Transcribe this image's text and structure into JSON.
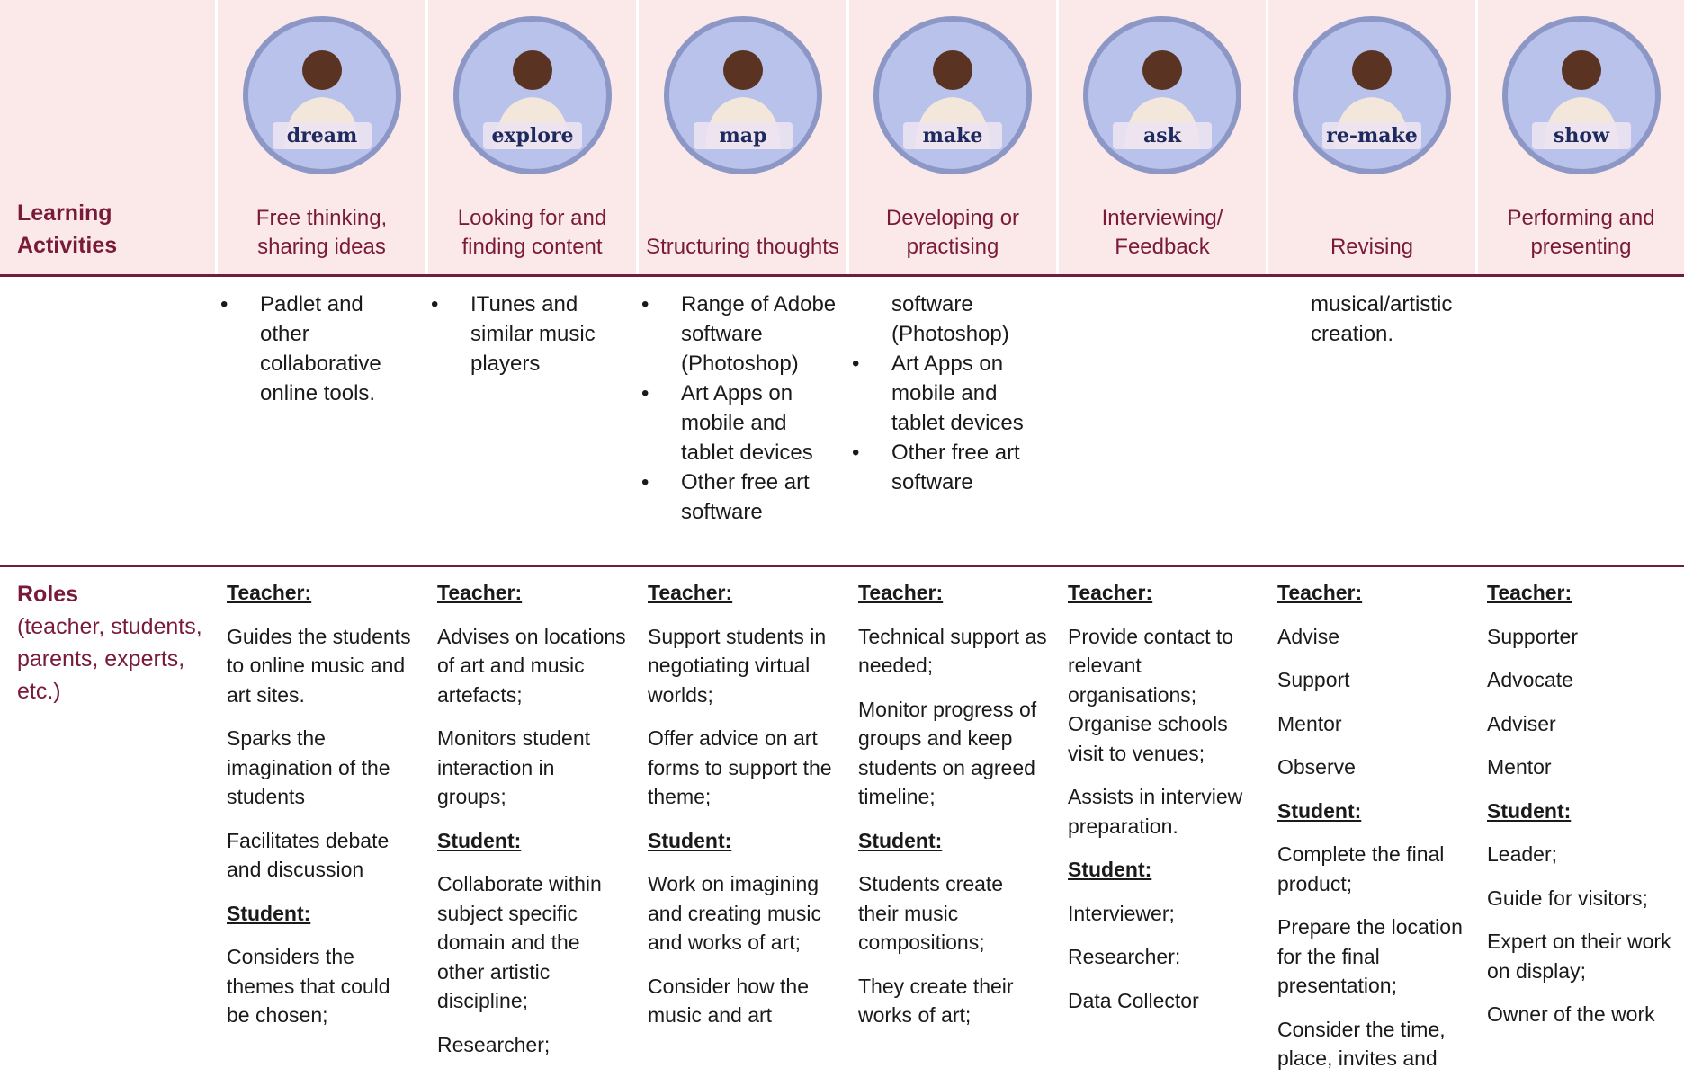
{
  "header": {
    "row_label": "Learning Activities",
    "columns": [
      {
        "icon": "dream",
        "activity": "Free thinking, sharing ideas"
      },
      {
        "icon": "explore",
        "activity": "Looking for and finding content"
      },
      {
        "icon": "map",
        "activity": "Structuring thoughts"
      },
      {
        "icon": "make",
        "activity": "Developing or practising"
      },
      {
        "icon": "ask",
        "activity": "Interviewing/ Feedback"
      },
      {
        "icon": "re-make",
        "activity": "Revising"
      },
      {
        "icon": "show",
        "activity": "Performing and presenting"
      }
    ]
  },
  "tools": [
    [
      {
        "text": "Padlet and other collaborative online tools.",
        "bullet": true
      }
    ],
    [
      {
        "text": "ITunes and similar music players",
        "bullet": true
      }
    ],
    [
      {
        "text": "Range of Adobe software (Photoshop)",
        "bullet": true
      },
      {
        "text": "Art Apps on mobile and tablet devices",
        "bullet": true
      },
      {
        "text": "Other free art software",
        "bullet": true
      }
    ],
    [
      {
        "text": "software (Photoshop)",
        "bullet": false
      },
      {
        "text": "Art Apps on mobile and tablet devices",
        "bullet": true
      },
      {
        "text": "Other free art software",
        "bullet": true
      }
    ],
    [],
    [
      {
        "text": "musical/artistic creation.",
        "bullet": false
      }
    ],
    []
  ],
  "roles": {
    "label": "Roles",
    "sublabel": "(teacher, students, parents, experts, etc.)",
    "cells": [
      [
        {
          "heading": "Teacher:"
        },
        {
          "text": "Guides the students to online music and art sites."
        },
        {
          "text": "Sparks the imagination of the students"
        },
        {
          "text": "Facilitates debate and discussion"
        },
        {
          "heading": "Student:"
        },
        {
          "text": "Considers the themes that could be chosen;"
        }
      ],
      [
        {
          "heading": "Teacher:"
        },
        {
          "text": "Advises on locations of art and music artefacts;"
        },
        {
          "text": "Monitors student interaction in groups;"
        },
        {
          "heading": "Student:"
        },
        {
          "text": "Collaborate within subject specific domain and the other artistic discipline;"
        },
        {
          "text": "Researcher;"
        }
      ],
      [
        {
          "heading": "Teacher:"
        },
        {
          "text": "Support students in negotiating virtual worlds;"
        },
        {
          "text": "Offer advice on art forms to support the theme;"
        },
        {
          "heading": "Student:"
        },
        {
          "text": "Work on imagining and creating music and works of art;"
        },
        {
          "text": "Consider how the music and art"
        }
      ],
      [
        {
          "heading": "Teacher:"
        },
        {
          "text": "Technical support as needed;"
        },
        {
          "text": "Monitor progress of groups and keep students on agreed timeline;"
        },
        {
          "heading": "Student:"
        },
        {
          "text": "Students create their music compositions;"
        },
        {
          "text": "They create their works of art;"
        }
      ],
      [
        {
          "heading": "Teacher:"
        },
        {
          "text": "Provide contact to relevant organisations;\nOrganise schools visit to venues;"
        },
        {
          "text": "Assists in interview preparation."
        },
        {
          "heading": "Student:"
        },
        {
          "text": "Interviewer;"
        },
        {
          "text": "Researcher:"
        },
        {
          "text": "Data Collector"
        }
      ],
      [
        {
          "heading": "Teacher:"
        },
        {
          "text": "Advise"
        },
        {
          "text": "Support"
        },
        {
          "text": "Mentor"
        },
        {
          "text": "Observe"
        },
        {
          "heading": "Student:"
        },
        {
          "text": "Complete the final product;"
        },
        {
          "text": "Prepare the location for the final presentation;"
        },
        {
          "text": "Consider the time, place, invites and"
        }
      ],
      [
        {
          "heading": "Teacher:"
        },
        {
          "text": "Supporter"
        },
        {
          "text": "Advocate"
        },
        {
          "text": "Adviser"
        },
        {
          "text": "Mentor"
        },
        {
          "heading": "Student:"
        },
        {
          "text": "Leader;"
        },
        {
          "text": "Guide for visitors;"
        },
        {
          "text": "Expert on their work on display;"
        },
        {
          "text": "Owner of the work"
        }
      ]
    ]
  }
}
